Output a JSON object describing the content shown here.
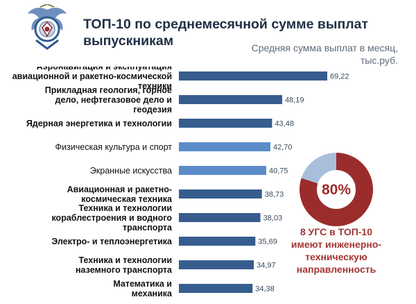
{
  "header": {
    "title_line1": "ТОП-10 по среднемесячной сумме выплат",
    "title_line2": "выпускникам",
    "subtitle_line1": "Средняя сумма выплат в месяц,",
    "subtitle_line2": "тыс.руб."
  },
  "colors": {
    "bar_dark": "#365d8e",
    "bar_light": "#5b8cc9",
    "donut_main": "#9b2c2c",
    "donut_rest": "#a9bedb",
    "note_text": "#a33434",
    "label_text": "#111111",
    "value_text": "#3a4a5c"
  },
  "chart_data": {
    "type": "bar",
    "orientation": "horizontal",
    "categories": [
      [
        "Аэронавигация и эксплуатация",
        "авиационной и ракетно-космической",
        "техники"
      ],
      [
        "Прикладная геология, горное",
        "дело, нефтегазовое дело и",
        "геодезия"
      ],
      [
        "Ядерная энергетика и технологии"
      ],
      [
        "Физическая культура и спорт"
      ],
      [
        "Экранные искусства"
      ],
      [
        "Авиационная и ракетно-",
        "космическая техника"
      ],
      [
        "Техника и технологии",
        "кораблестроения и водного",
        "транспорта"
      ],
      [
        "Электро- и теплоэнергетика"
      ],
      [
        "Техника и технологии",
        "наземного транспорта"
      ],
      [
        "Математика и",
        "механика"
      ]
    ],
    "values": [
      69.22,
      48.19,
      43.48,
      42.7,
      40.75,
      38.73,
      38.03,
      35.69,
      34.97,
      34.38
    ],
    "value_labels": [
      "69,22",
      "48,19",
      "43,48",
      "42,70",
      "40,75",
      "38,73",
      "38,03",
      "35,69",
      "34,97",
      "34,38"
    ],
    "emphasis": [
      "dark",
      "dark",
      "dark",
      "light",
      "light",
      "dark",
      "dark",
      "dark",
      "dark",
      "dark"
    ],
    "xlim": [
      0,
      69.22
    ]
  },
  "donut": {
    "percent_label": "80%",
    "share": 0.8
  },
  "note_lines": [
    "8 УГС в ТОП-10",
    "имеют инженерно-",
    "техническую",
    "направленность"
  ]
}
